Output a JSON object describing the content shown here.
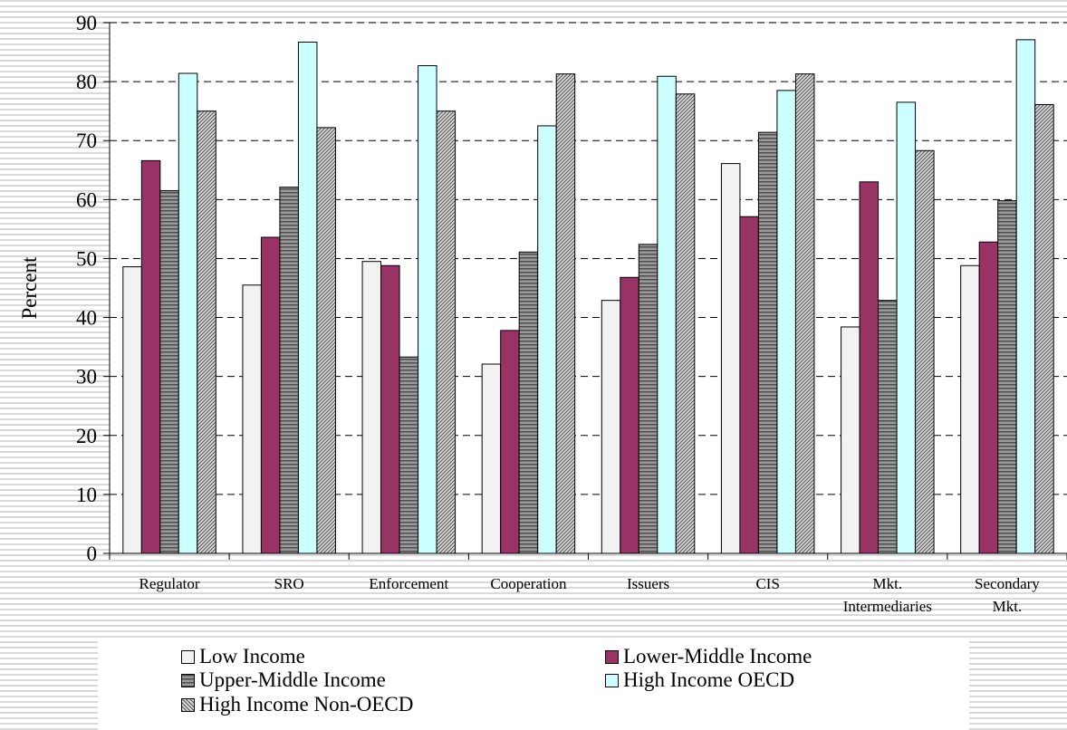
{
  "chart_data": {
    "type": "bar",
    "title": "",
    "xlabel": "",
    "ylabel": "Percent",
    "ylim": [
      0,
      90
    ],
    "yticks": [
      0,
      10,
      20,
      30,
      40,
      50,
      60,
      70,
      80,
      90
    ],
    "grid": "horizontal dashed",
    "legend_position": "bottom",
    "categories": [
      [
        "Regulator"
      ],
      [
        "SRO"
      ],
      [
        "Enforcement"
      ],
      [
        "Cooperation"
      ],
      [
        "Issuers"
      ],
      [
        "CIS"
      ],
      [
        "Mkt.",
        "Intermediaries"
      ],
      [
        "Secondary",
        "Mkt."
      ]
    ],
    "series": [
      {
        "name": "Low Income",
        "color": "#f2f2f2",
        "pattern": "solid",
        "values": [
          48.6,
          45.5,
          49.5,
          32.1,
          42.9,
          66.1,
          38.4,
          48.8
        ]
      },
      {
        "name": "Lower-Middle Income",
        "color": "#993366",
        "pattern": "solid",
        "values": [
          66.6,
          53.6,
          48.8,
          37.8,
          46.8,
          57.1,
          63.0,
          52.8
        ]
      },
      {
        "name": "Upper-Middle Income",
        "color": "#808080",
        "pattern": "horizontal-lines",
        "values": [
          61.5,
          62.1,
          33.3,
          51.1,
          52.4,
          71.4,
          42.9,
          59.8
        ]
      },
      {
        "name": "High Income OECD",
        "color": "#ccffff",
        "pattern": "solid",
        "values": [
          81.4,
          86.7,
          82.7,
          72.5,
          80.9,
          78.5,
          76.5,
          87.1
        ]
      },
      {
        "name": "High Income Non-OECD",
        "color": "#a6a6a6",
        "pattern": "diagonal-lines",
        "values": [
          75.0,
          72.2,
          75.0,
          81.3,
          77.9,
          81.3,
          68.3,
          76.1
        ]
      }
    ]
  }
}
